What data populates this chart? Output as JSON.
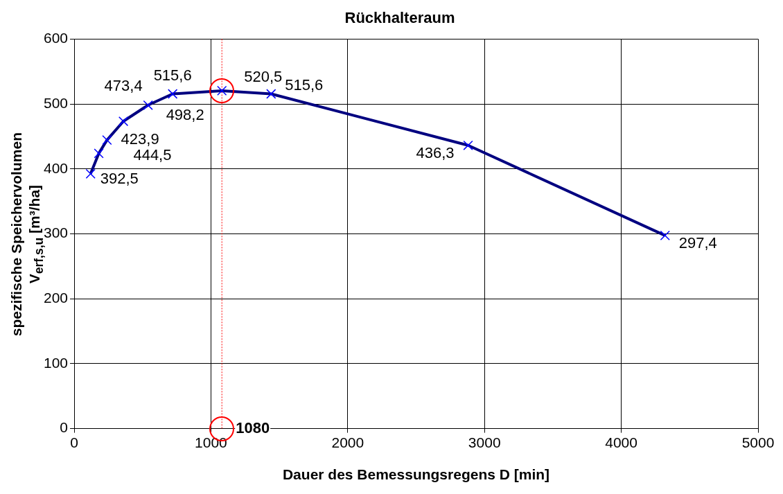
{
  "chart_data": {
    "type": "line",
    "title": "Rückhalteraum",
    "xlabel": "Dauer des Bemessungsregens D [min]",
    "ylabel": "spezifische Speichervolumen\nV$_{erf,s,u}$ [m³/ha]",
    "x": [
      120,
      180,
      240,
      360,
      540,
      720,
      1080,
      1440,
      2880,
      4320
    ],
    "series": [
      {
        "color": "#000080",
        "values": [
          392.5,
          423.9,
          444.5,
          473.4,
          498.2,
          515.6,
          520.5,
          515.6,
          436.3,
          297.4
        ],
        "value_labels": [
          "392,5",
          "423,9",
          "444,5",
          "473,4",
          "498,2",
          "515,6",
          "520,5",
          "515,6",
          "436,3",
          "297,4"
        ]
      }
    ],
    "xlim": [
      0,
      5000
    ],
    "xticks": [
      0,
      1000,
      2000,
      3000,
      4000,
      5000
    ],
    "ylim": [
      0,
      600
    ],
    "yticks": [
      0,
      100,
      200,
      300,
      400,
      500,
      600
    ],
    "grid": true,
    "legend": false,
    "marker": "cross",
    "line_style": "solid",
    "ref_lines": [
      {
        "axis": "x",
        "value": 1080,
        "color": "#ff0000",
        "line_style": "dotted"
      }
    ],
    "annotations": [
      {
        "text": "1080",
        "x": 1080,
        "y": 0
      }
    ]
  }
}
